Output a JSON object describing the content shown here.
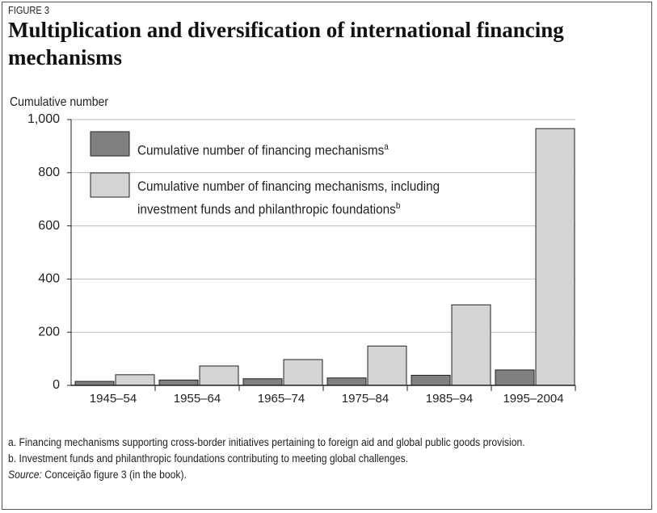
{
  "chart_data": {
    "type": "bar",
    "label": "FIGURE 3",
    "title": "Multiplication and diversification of international financing mechanisms",
    "ylabel": "Cumulative number",
    "categories": [
      "1945–54",
      "1955–64",
      "1965–74",
      "1975–84",
      "1985–94",
      "1995–2004"
    ],
    "series": [
      {
        "name": "Cumulative number of financing mechanisms",
        "note": "a",
        "color": "#7f8180",
        "values": [
          15,
          20,
          25,
          28,
          38,
          58
        ]
      },
      {
        "name": "Cumulative number of financing mechanisms, including investment funds and philanthropic foundations",
        "note": "b",
        "color": "#d3d4d5",
        "values": [
          40,
          73,
          97,
          148,
          303,
          966
        ]
      }
    ],
    "ylim": [
      0,
      1000
    ],
    "yticks": [
      0,
      200,
      400,
      600,
      800,
      {
        "value": 1000,
        "label": "1,000"
      }
    ],
    "grid": true,
    "notes": [
      "a. Financing mechanisms supporting cross-border initiatives pertaining to foreign aid and global public goods provision.",
      "b. Investment funds and philanthropic foundations contributing to meeting global challenges."
    ],
    "source": {
      "label": "Source:",
      "text": "Conceição figure 3 (in the book)."
    }
  }
}
